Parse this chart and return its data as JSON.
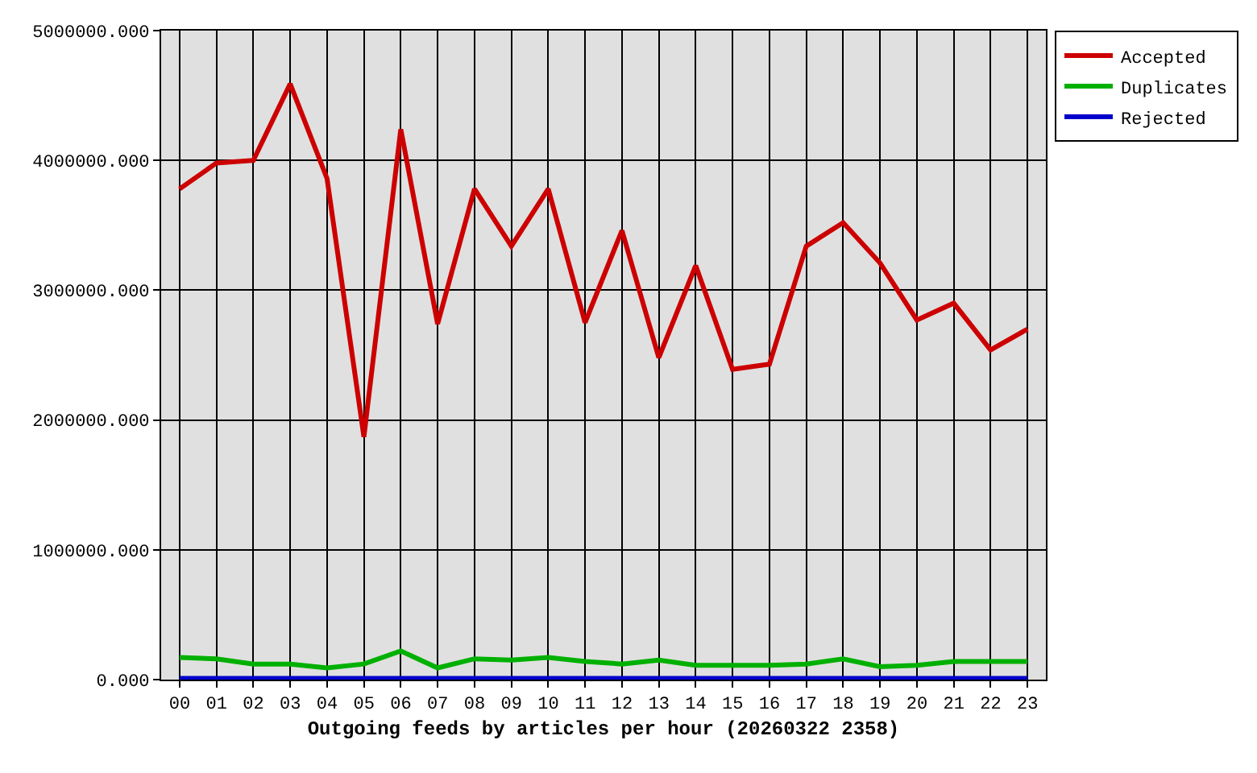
{
  "chart_data": {
    "type": "line",
    "xlabel": "Outgoing feeds by articles per hour (20260322 2358)",
    "categories": [
      "00",
      "01",
      "02",
      "03",
      "04",
      "05",
      "06",
      "07",
      "08",
      "09",
      "10",
      "11",
      "12",
      "13",
      "14",
      "15",
      "16",
      "17",
      "18",
      "19",
      "20",
      "21",
      "22",
      "23"
    ],
    "series": [
      {
        "name": "Accepted",
        "color": "#cc0000",
        "values": [
          3780000,
          3980000,
          4000000,
          4590000,
          3860000,
          1870000,
          4240000,
          2740000,
          3780000,
          3340000,
          3780000,
          2750000,
          3460000,
          2480000,
          3190000,
          2390000,
          2430000,
          3340000,
          3520000,
          3210000,
          2770000,
          2900000,
          2540000,
          2700000
        ]
      },
      {
        "name": "Duplicates",
        "color": "#00b000",
        "values": [
          170000,
          160000,
          120000,
          120000,
          90000,
          120000,
          220000,
          90000,
          160000,
          150000,
          170000,
          140000,
          120000,
          150000,
          110000,
          110000,
          110000,
          120000,
          160000,
          100000,
          110000,
          140000,
          140000,
          140000
        ]
      },
      {
        "name": "Rejected",
        "color": "#0000cc",
        "values": [
          10000,
          10000,
          10000,
          10000,
          10000,
          10000,
          10000,
          10000,
          10000,
          10000,
          10000,
          10000,
          10000,
          10000,
          10000,
          10000,
          10000,
          10000,
          10000,
          10000,
          10000,
          10000,
          10000,
          10000
        ]
      }
    ],
    "ylim": [
      0,
      5000000
    ],
    "yticks": [
      {
        "value": 0,
        "label": "0.000"
      },
      {
        "value": 1000000,
        "label": "1000000.000"
      },
      {
        "value": 2000000,
        "label": "2000000.000"
      },
      {
        "value": 3000000,
        "label": "3000000.000"
      },
      {
        "value": 4000000,
        "label": "4000000.000"
      },
      {
        "value": 5000000,
        "label": "5000000.000"
      }
    ],
    "grid": true,
    "legend": "top right",
    "marker": "none",
    "line_style": "solid"
  }
}
